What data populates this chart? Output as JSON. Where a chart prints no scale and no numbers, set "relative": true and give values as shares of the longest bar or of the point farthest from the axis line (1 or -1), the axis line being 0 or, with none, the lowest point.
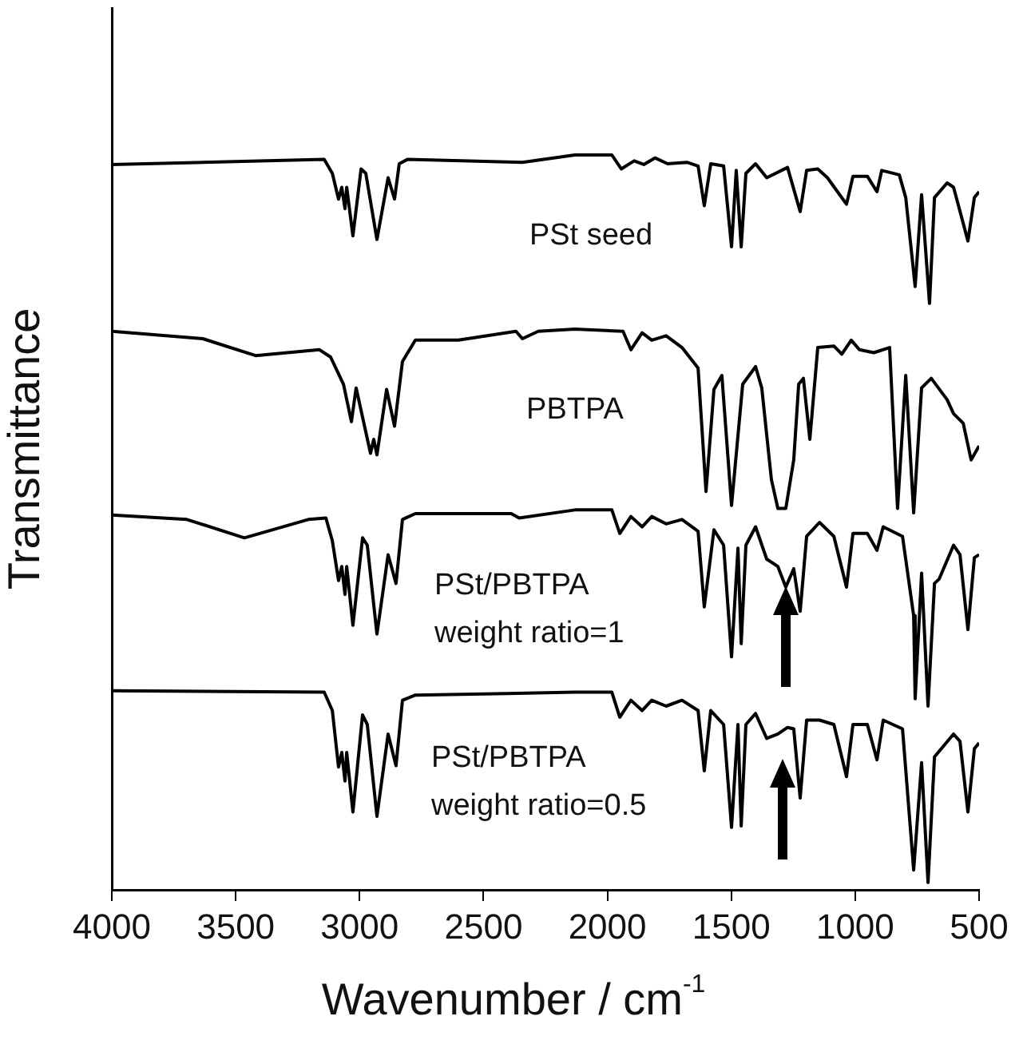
{
  "chart_data": {
    "type": "line",
    "xlabel": "Wavenumber / cm$^{-1}$",
    "ylabel": "Transmittance",
    "relative": true,
    "xlim": [
      4000,
      500
    ],
    "xticks": [
      4000,
      3500,
      3000,
      2500,
      2000,
      1500,
      1000,
      500
    ],
    "grid": false,
    "legend": false,
    "marker": "none",
    "line_style": "solid",
    "series": [
      {
        "name": "PSt seed",
        "color": "#000000",
        "x": [
          4000,
          3143,
          3110,
          3085,
          3072,
          3059,
          3052,
          3027,
          2994,
          2975,
          2930,
          2885,
          2859,
          2840,
          2807,
          2343,
          2131,
          1982,
          1944,
          1892,
          1853,
          1808,
          1757,
          1679,
          1634,
          1609,
          1583,
          1531,
          1499,
          1480,
          1460,
          1441,
          1402,
          1357,
          1273,
          1222,
          1196,
          1151,
          1112,
          1035,
          1009,
          951,
          912,
          893,
          822,
          796,
          758,
          732,
          700,
          680,
          629,
          603,
          545,
          519,
          500
        ],
        "values": [
          0.987,
          0.994,
          0.975,
          0.94,
          0.956,
          0.927,
          0.956,
          0.89,
          0.981,
          0.975,
          0.885,
          0.969,
          0.94,
          0.988,
          0.994,
          0.99,
          1.0,
          1.0,
          0.981,
          0.992,
          0.987,
          0.996,
          0.988,
          0.99,
          0.985,
          0.931,
          0.988,
          0.985,
          0.875,
          0.979,
          0.875,
          0.975,
          0.988,
          0.969,
          0.983,
          0.923,
          0.979,
          0.981,
          0.969,
          0.933,
          0.971,
          0.971,
          0.95,
          0.979,
          0.973,
          0.942,
          0.821,
          0.946,
          0.798,
          0.942,
          0.962,
          0.956,
          0.883,
          0.942,
          0.95
        ]
      },
      {
        "name": "PBTPA",
        "color": "#000000",
        "x": [
          4000,
          3633,
          3420,
          3162,
          3117,
          3065,
          3033,
          3014,
          2956,
          2943,
          2930,
          2891,
          2859,
          2827,
          2775,
          2601,
          2369,
          2343,
          2279,
          2131,
          1937,
          1905,
          1860,
          1821,
          1763,
          1699,
          1634,
          1602,
          1570,
          1538,
          1499,
          1454,
          1402,
          1377,
          1338,
          1312,
          1280,
          1248,
          1228,
          1209,
          1183,
          1151,
          1086,
          1054,
          1016,
          983,
          925,
          861,
          829,
          796,
          764,
          732,
          693,
          629,
          603,
          564,
          532,
          500
        ],
        "values": [
          0.76,
          0.75,
          0.727,
          0.735,
          0.725,
          0.688,
          0.637,
          0.683,
          0.594,
          0.613,
          0.592,
          0.681,
          0.631,
          0.719,
          0.748,
          0.748,
          0.76,
          0.75,
          0.76,
          0.763,
          0.76,
          0.735,
          0.758,
          0.748,
          0.754,
          0.738,
          0.71,
          0.542,
          0.681,
          0.7,
          0.523,
          0.688,
          0.712,
          0.683,
          0.558,
          0.519,
          0.519,
          0.585,
          0.688,
          0.696,
          0.613,
          0.738,
          0.74,
          0.729,
          0.748,
          0.735,
          0.731,
          0.738,
          0.519,
          0.7,
          0.513,
          0.683,
          0.696,
          0.667,
          0.648,
          0.635,
          0.585,
          0.604
        ]
      },
      {
        "name": "PSt/PBTPA weight ratio=1",
        "color": "#000000",
        "x": [
          4000,
          3697,
          3465,
          3207,
          3136,
          3110,
          3085,
          3072,
          3059,
          3052,
          3027,
          2988,
          2969,
          2930,
          2885,
          2853,
          2827,
          2775,
          2388,
          2356,
          2131,
          1982,
          1950,
          1905,
          1860,
          1821,
          1763,
          1699,
          1634,
          1609,
          1570,
          1531,
          1499,
          1473,
          1460,
          1441,
          1402,
          1357,
          1312,
          1280,
          1248,
          1222,
          1196,
          1144,
          1086,
          1035,
          1009,
          951,
          912,
          887,
          809,
          764,
          758,
          732,
          706,
          680,
          661,
          603,
          577,
          545,
          519,
          500
        ],
        "values": [
          0.51,
          0.504,
          0.479,
          0.504,
          0.506,
          0.475,
          0.421,
          0.44,
          0.402,
          0.44,
          0.36,
          0.479,
          0.469,
          0.348,
          0.456,
          0.417,
          0.504,
          0.512,
          0.512,
          0.506,
          0.517,
          0.517,
          0.485,
          0.508,
          0.494,
          0.508,
          0.498,
          0.504,
          0.488,
          0.385,
          0.49,
          0.469,
          0.317,
          0.465,
          0.335,
          0.469,
          0.494,
          0.45,
          0.44,
          0.412,
          0.437,
          0.379,
          0.481,
          0.5,
          0.481,
          0.412,
          0.485,
          0.485,
          0.462,
          0.494,
          0.481,
          0.373,
          0.26,
          0.431,
          0.25,
          0.417,
          0.423,
          0.469,
          0.456,
          0.354,
          0.452,
          0.456
        ]
      },
      {
        "name": "PSt/PBTPA weight ratio=0.5",
        "color": "#000000",
        "x": [
          4000,
          3143,
          3110,
          3085,
          3072,
          3059,
          3052,
          3027,
          2988,
          2969,
          2930,
          2885,
          2853,
          2827,
          2775,
          2407,
          2131,
          1982,
          1950,
          1905,
          1860,
          1821,
          1763,
          1699,
          1634,
          1609,
          1583,
          1531,
          1499,
          1473,
          1460,
          1441,
          1402,
          1357,
          1312,
          1273,
          1248,
          1222,
          1196,
          1144,
          1086,
          1035,
          1009,
          951,
          912,
          887,
          809,
          764,
          732,
          706,
          680,
          603,
          577,
          545,
          519,
          500
        ],
        "values": [
          0.271,
          0.269,
          0.244,
          0.167,
          0.187,
          0.148,
          0.187,
          0.106,
          0.238,
          0.225,
          0.1,
          0.212,
          0.169,
          0.258,
          0.265,
          0.267,
          0.269,
          0.269,
          0.235,
          0.258,
          0.244,
          0.258,
          0.25,
          0.258,
          0.244,
          0.162,
          0.244,
          0.225,
          0.085,
          0.225,
          0.087,
          0.225,
          0.24,
          0.206,
          0.212,
          0.221,
          0.219,
          0.125,
          0.231,
          0.231,
          0.225,
          0.154,
          0.225,
          0.225,
          0.177,
          0.231,
          0.219,
          0.027,
          0.173,
          0.01,
          0.181,
          0.212,
          0.202,
          0.106,
          0.192,
          0.2
        ]
      }
    ]
  }
}
